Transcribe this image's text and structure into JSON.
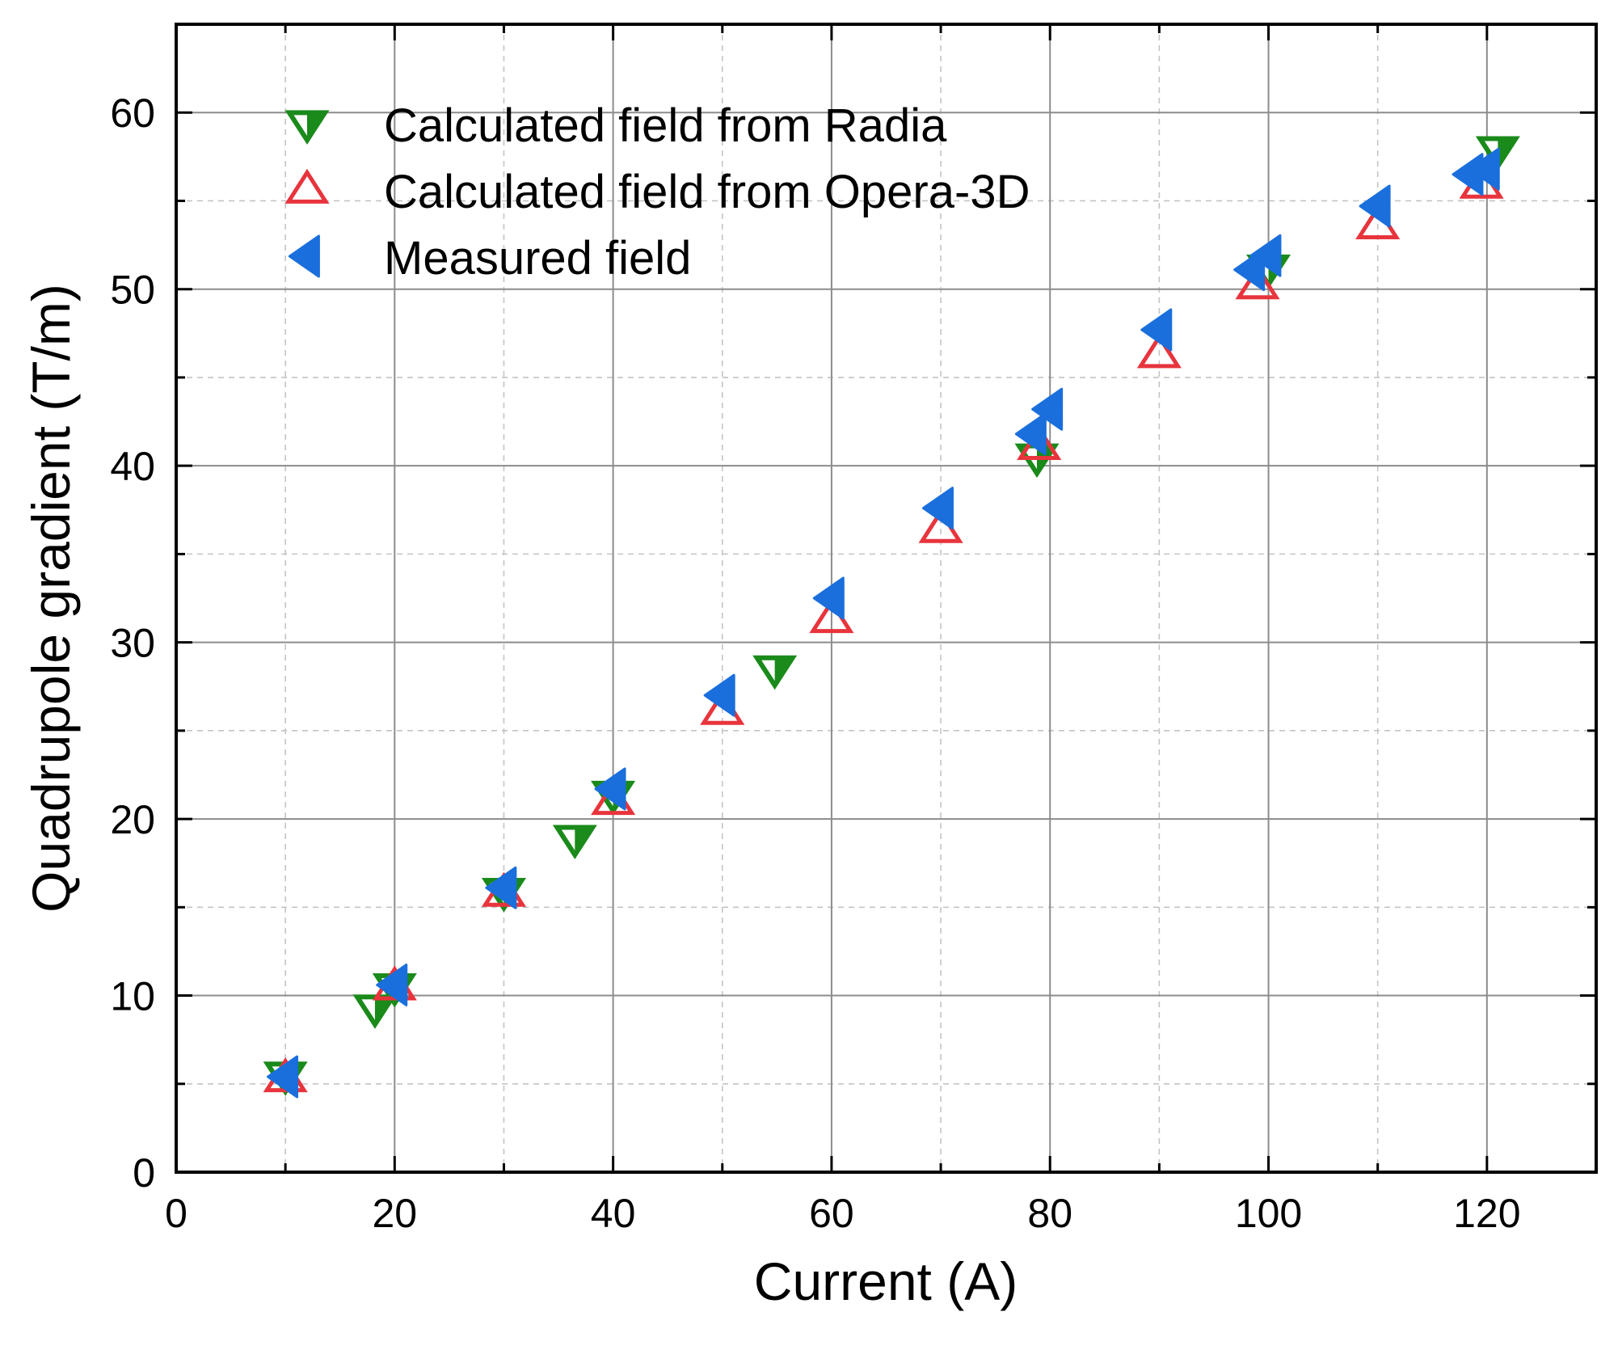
{
  "chart_data": {
    "type": "scatter",
    "title": "",
    "xlabel": "Current (A)",
    "ylabel": "Quadrupole gradient (T/m)",
    "xlim": [
      0,
      130
    ],
    "ylim": [
      0,
      65
    ],
    "x_ticks": [
      0,
      20,
      40,
      60,
      80,
      100,
      120
    ],
    "y_ticks": [
      0,
      10,
      20,
      30,
      40,
      50,
      60
    ],
    "x_tick_labels": [
      "0",
      "20",
      "40",
      "60",
      "80",
      "100",
      "120"
    ],
    "y_tick_labels": [
      "0",
      "10",
      "20",
      "30",
      "40",
      "50",
      "60"
    ],
    "grid": "on",
    "legend_position": "top-left",
    "series": [
      {
        "name": "Calculated field from Radia",
        "marker": "triangle-down-half-filled",
        "color": "#1a8a1a",
        "x": [
          10,
          18.2,
          20,
          30,
          36.5,
          40,
          54.8,
          78.8,
          100,
          121
        ],
        "y": [
          5.5,
          9.3,
          10.5,
          15.9,
          18.9,
          21.4,
          28.5,
          40.5,
          51.2,
          57.9
        ]
      },
      {
        "name": "Calculated field from Opera-3D",
        "marker": "triangle-up-open",
        "color": "#e8343c",
        "x": [
          10,
          20,
          30,
          40,
          50,
          60,
          70,
          79,
          90,
          99,
          110,
          119.5
        ],
        "y": [
          5.3,
          10.5,
          15.8,
          21.0,
          26.1,
          31.3,
          36.4,
          41.1,
          46.3,
          50.2,
          53.6,
          55.9
        ]
      },
      {
        "name": "Measured field",
        "marker": "triangle-left-filled",
        "color": "#1a6fdc",
        "x": [
          10,
          20,
          30,
          40,
          50,
          60,
          70,
          78.5,
          80,
          90,
          98.5,
          100,
          110,
          118.5,
          120
        ],
        "y": [
          5.4,
          10.6,
          16.1,
          21.7,
          27.0,
          32.5,
          37.6,
          41.8,
          43.2,
          47.7,
          51.1,
          51.9,
          54.7,
          56.5,
          56.8
        ]
      }
    ]
  }
}
